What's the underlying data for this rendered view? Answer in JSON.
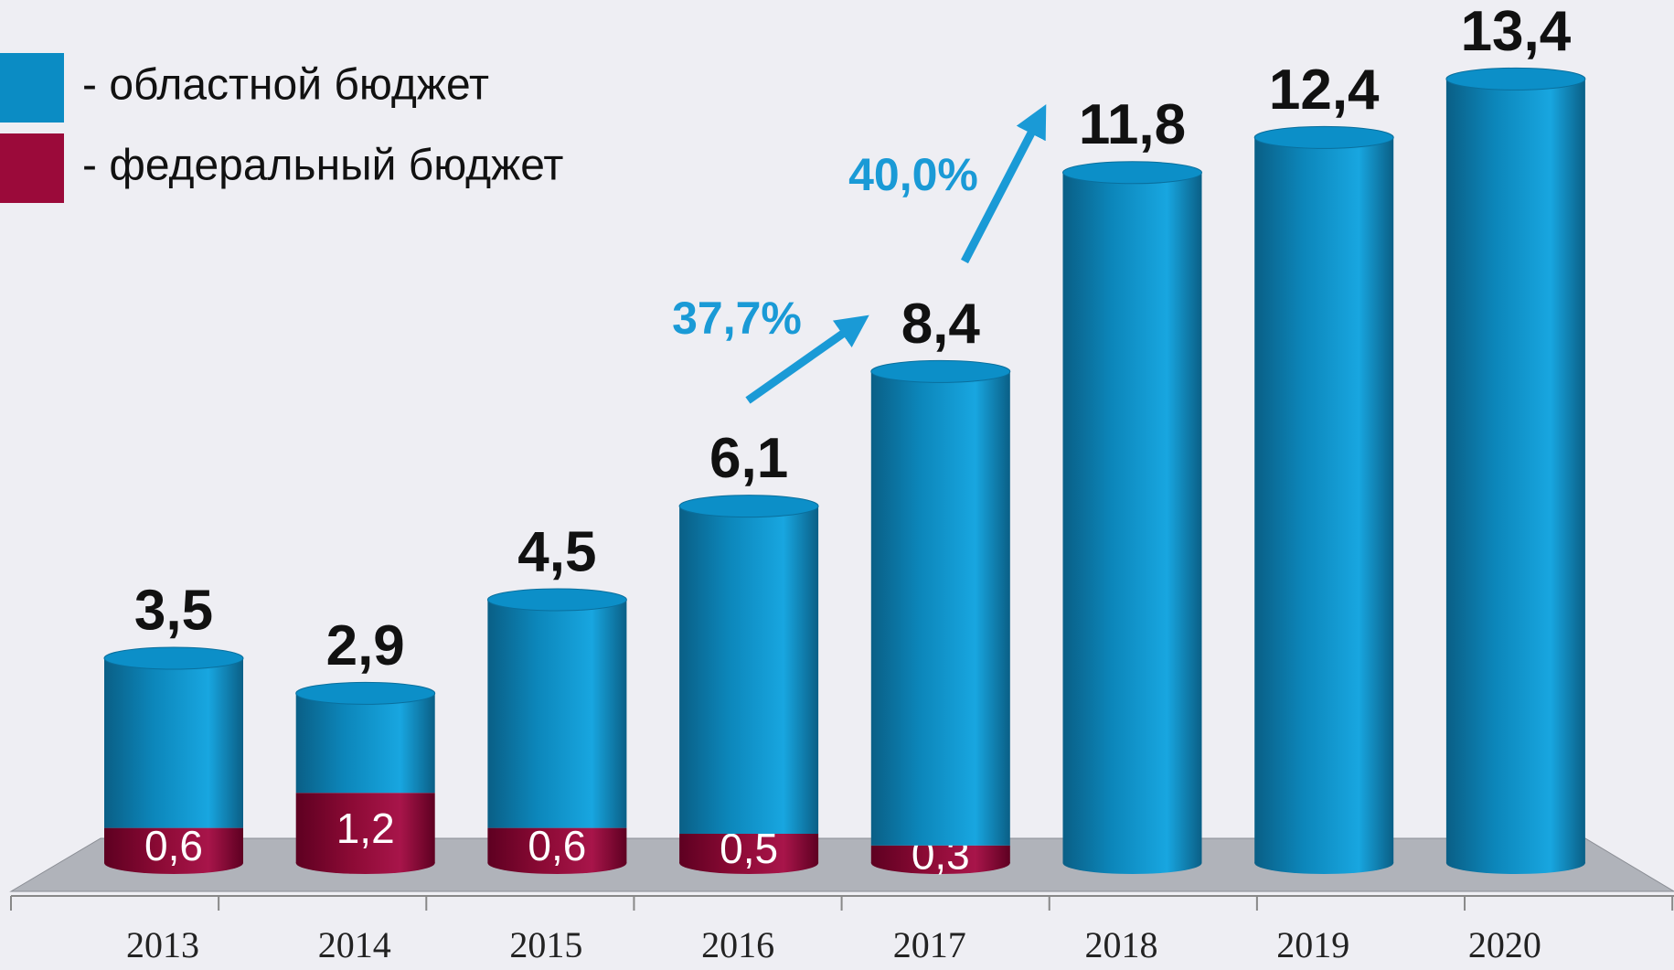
{
  "chart_data": {
    "type": "stacked_bar",
    "categories": [
      "2013",
      "2014",
      "2015",
      "2016",
      "2017",
      "2018",
      "2019",
      "2020"
    ],
    "series": [
      {
        "name": "- федеральный бюджет",
        "color": "#9b0a3a",
        "values": [
          0.6,
          1.2,
          0.6,
          0.5,
          0.3,
          null,
          null,
          null
        ],
        "value_labels": [
          "0,6",
          "1,2",
          "0,6",
          "0,5",
          "0,3",
          null,
          null,
          null
        ]
      },
      {
        "name": "- областной бюджет",
        "color": "#0b8cc4",
        "values": [
          2.9,
          1.7,
          3.9,
          5.6,
          8.1,
          11.8,
          12.4,
          13.4
        ]
      }
    ],
    "totals": [
      3.5,
      2.9,
      4.5,
      6.1,
      8.4,
      11.8,
      12.4,
      13.4
    ],
    "total_labels": [
      "3,5",
      "2,9",
      "4,5",
      "6,1",
      "8,4",
      "11,8",
      "12,4",
      "13,4"
    ],
    "annotations": [
      "37,7%",
      "40,0%"
    ],
    "ylim": [
      0,
      14
    ]
  }
}
